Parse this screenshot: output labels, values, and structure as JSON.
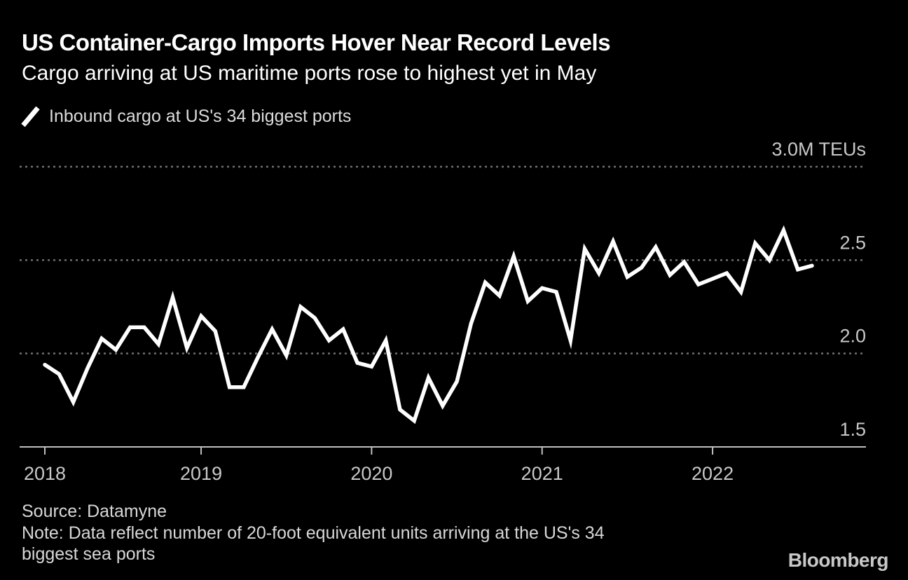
{
  "header": {
    "title": "US Container-Cargo Imports Hover Near Record Levels",
    "subtitle": "Cargo arriving at US maritime ports rose to highest yet in May"
  },
  "legend": {
    "label": "Inbound cargo at US's 34 biggest ports",
    "marker": "diagonal-line",
    "marker_color": "#ffffff"
  },
  "chart_data": {
    "type": "line",
    "title": "Inbound cargo at US's 34 biggest ports",
    "unit": "M TEUs",
    "ylim": [
      1.5,
      3.0
    ],
    "xlim": [
      "2018-01",
      "2022-07"
    ],
    "grid": "horizontal dotted",
    "legend_position": "top-left",
    "line_color": "#ffffff",
    "series": [
      {
        "name": "Inbound cargo at US's 34 biggest ports",
        "x": [
          "2018-01",
          "2018-02",
          "2018-03",
          "2018-04",
          "2018-05",
          "2018-06",
          "2018-07",
          "2018-08",
          "2018-09",
          "2018-10",
          "2018-11",
          "2018-12",
          "2019-01",
          "2019-02",
          "2019-03",
          "2019-04",
          "2019-05",
          "2019-06",
          "2019-07",
          "2019-08",
          "2019-09",
          "2019-10",
          "2019-11",
          "2019-12",
          "2020-01",
          "2020-02",
          "2020-03",
          "2020-04",
          "2020-05",
          "2020-06",
          "2020-07",
          "2020-08",
          "2020-09",
          "2020-10",
          "2020-11",
          "2020-12",
          "2021-01",
          "2021-02",
          "2021-03",
          "2021-04",
          "2021-05",
          "2021-06",
          "2021-07",
          "2021-08",
          "2021-09",
          "2021-10",
          "2021-11",
          "2021-12",
          "2022-01",
          "2022-02",
          "2022-03",
          "2022-04",
          "2022-05",
          "2022-06",
          "2022-07"
        ],
        "values": [
          1.94,
          1.89,
          1.74,
          1.92,
          2.08,
          2.02,
          2.14,
          2.14,
          2.05,
          2.3,
          2.03,
          2.2,
          2.12,
          1.82,
          1.82,
          1.98,
          2.13,
          1.99,
          2.25,
          2.19,
          2.07,
          2.13,
          1.95,
          1.93,
          2.07,
          1.7,
          1.64,
          1.87,
          1.72,
          1.85,
          2.16,
          2.38,
          2.31,
          2.52,
          2.28,
          2.35,
          2.33,
          2.07,
          2.56,
          2.43,
          2.6,
          2.41,
          2.46,
          2.57,
          2.42,
          2.49,
          2.37,
          2.4,
          2.43,
          2.33,
          2.59,
          2.5,
          2.66,
          2.45,
          2.47
        ]
      }
    ],
    "yticks": [
      {
        "value": 3.0,
        "label": "3.0M TEUs"
      },
      {
        "value": 2.5,
        "label": "2.5"
      },
      {
        "value": 2.0,
        "label": "2.0"
      },
      {
        "value": 1.5,
        "label": "1.5"
      }
    ],
    "xticks": [
      {
        "index": 0,
        "label": "2018"
      },
      {
        "index": 11,
        "label": "2019"
      },
      {
        "index": 23,
        "label": "2020"
      },
      {
        "index": 35,
        "label": "2021"
      },
      {
        "index": 47,
        "label": "2022"
      }
    ]
  },
  "footer": {
    "source": "Source: Datamyne",
    "note_line1": "Note: Data reflect number of 20-foot equivalent units arriving at the US's 34",
    "note_line2": "biggest sea ports"
  },
  "branding": {
    "logo": "Bloomberg"
  },
  "colors": {
    "background": "#000000",
    "title_text": "#ffffff",
    "axis_label": "#c8c8c8",
    "gridline": "#707070",
    "axis_line": "#c0c0c0",
    "line": "#ffffff",
    "muted_text": "#d8d8d8"
  }
}
